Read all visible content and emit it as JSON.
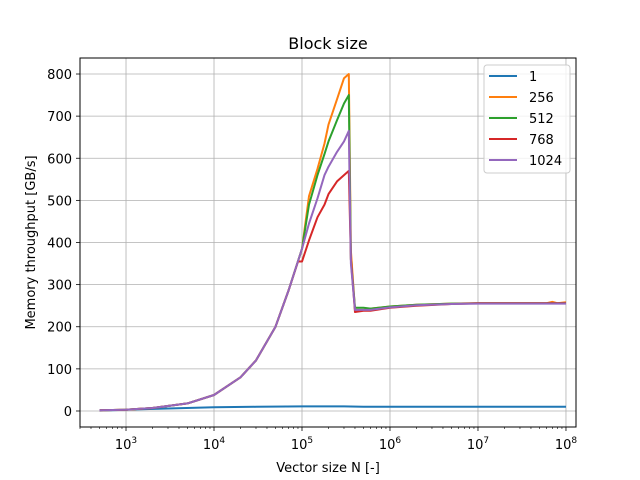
{
  "chart_data": {
    "type": "line",
    "title": "Block size",
    "xlabel": "Vector size N [-]",
    "ylabel": "Memory throughput [GB/s]",
    "xscale": "log",
    "xlim": [
      300,
      130000000
    ],
    "ylim": [
      -38,
      838
    ],
    "grid": true,
    "legend_position": "top-right",
    "x_ticks": [
      {
        "value": 1000,
        "base": "10",
        "exp": "3"
      },
      {
        "value": 10000,
        "base": "10",
        "exp": "4"
      },
      {
        "value": 100000,
        "base": "10",
        "exp": "5"
      },
      {
        "value": 1000000,
        "base": "10",
        "exp": "6"
      },
      {
        "value": 10000000,
        "base": "10",
        "exp": "7"
      },
      {
        "value": 100000000,
        "base": "10",
        "exp": "8"
      }
    ],
    "y_ticks": [
      0,
      100,
      200,
      300,
      400,
      500,
      600,
      700,
      800
    ],
    "series": [
      {
        "name": "1",
        "color": "#1f77b4",
        "x": [
          500,
          1000,
          3000,
          10000,
          30000,
          100000,
          300000,
          500000,
          1000000,
          10000000,
          100000000
        ],
        "y": [
          1,
          3,
          6,
          9,
          10,
          11,
          11,
          10,
          10,
          10,
          10
        ]
      },
      {
        "name": "256",
        "color": "#ff7f0e",
        "x": [
          500,
          1000,
          2000,
          5000,
          10000,
          20000,
          30000,
          50000,
          70000,
          100000,
          120000,
          150000,
          180000,
          200000,
          250000,
          300000,
          340000,
          360000,
          400000,
          500000,
          600000,
          1000000,
          2000000,
          5000000,
          10000000,
          30000000,
          60000000,
          70000000,
          80000000,
          100000000
        ],
        "y": [
          2,
          3,
          7,
          18,
          38,
          80,
          120,
          200,
          285,
          385,
          510,
          575,
          635,
          680,
          740,
          790,
          800,
          380,
          240,
          240,
          243,
          248,
          252,
          255,
          256,
          256,
          256,
          259,
          256,
          258
        ]
      },
      {
        "name": "512",
        "color": "#2ca02c",
        "x": [
          500,
          1000,
          2000,
          5000,
          10000,
          20000,
          30000,
          50000,
          70000,
          100000,
          120000,
          150000,
          180000,
          200000,
          250000,
          300000,
          340000,
          360000,
          400000,
          500000,
          600000,
          1000000,
          2000000,
          5000000,
          10000000,
          30000000,
          100000000
        ],
        "y": [
          2,
          3,
          7,
          18,
          38,
          80,
          120,
          200,
          285,
          385,
          490,
          560,
          610,
          640,
          690,
          730,
          750,
          360,
          245,
          245,
          243,
          248,
          252,
          255,
          256,
          256,
          256
        ]
      },
      {
        "name": "768",
        "color": "#d62728",
        "x": [
          500,
          1000,
          2000,
          5000,
          10000,
          20000,
          30000,
          50000,
          70000,
          90000,
          100000,
          120000,
          150000,
          180000,
          200000,
          250000,
          300000,
          340000,
          360000,
          400000,
          500000,
          600000,
          1000000,
          2000000,
          5000000,
          10000000,
          30000000,
          100000000
        ],
        "y": [
          2,
          3,
          7,
          18,
          38,
          80,
          120,
          200,
          285,
          355,
          355,
          405,
          460,
          490,
          515,
          545,
          560,
          570,
          360,
          235,
          238,
          238,
          245,
          250,
          254,
          256,
          256,
          256
        ]
      },
      {
        "name": "1024",
        "color": "#9467bd",
        "x": [
          500,
          1000,
          2000,
          5000,
          10000,
          20000,
          30000,
          50000,
          70000,
          100000,
          120000,
          150000,
          180000,
          200000,
          250000,
          300000,
          340000,
          360000,
          400000,
          500000,
          600000,
          1000000,
          2000000,
          5000000,
          10000000,
          30000000,
          100000000
        ],
        "y": [
          2,
          3,
          7,
          18,
          38,
          80,
          120,
          200,
          285,
          385,
          445,
          505,
          560,
          580,
          615,
          640,
          665,
          350,
          240,
          240,
          240,
          246,
          251,
          254,
          255,
          255,
          255
        ]
      }
    ]
  }
}
